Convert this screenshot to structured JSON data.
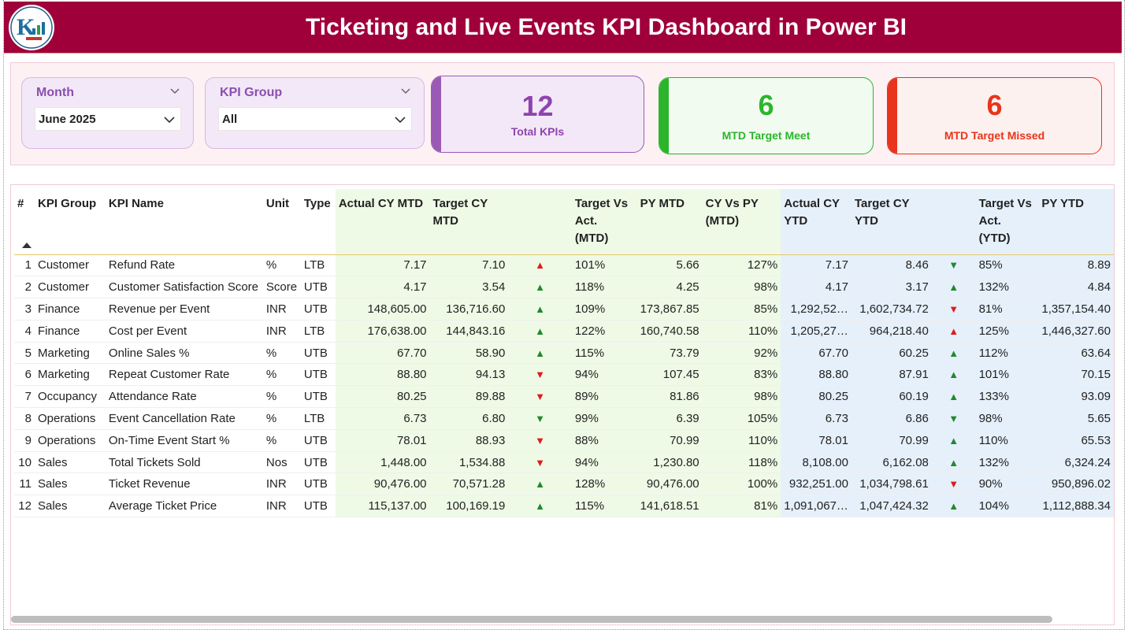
{
  "header": {
    "title": "Ticketing and Live Events KPI Dashboard in Power BI",
    "logo_icon": "company-logo"
  },
  "filters": {
    "month": {
      "label": "Month",
      "value": "June 2025"
    },
    "kpi_group": {
      "label": "KPI Group",
      "value": "All"
    }
  },
  "cards": {
    "total": {
      "value": "12",
      "label": "Total KPIs",
      "color": "#9b59b6"
    },
    "meet": {
      "value": "6",
      "label": "MTD Target Meet",
      "color": "#2cb52c"
    },
    "missed": {
      "value": "6",
      "label": "MTD Target Missed",
      "color": "#e8341c"
    }
  },
  "table": {
    "headers": {
      "num": "#",
      "group": "KPI Group",
      "name": "KPI Name",
      "unit": "Unit",
      "type": "Type",
      "actual_mtd": "Actual CY MTD",
      "target_mtd": "Target CY MTD",
      "tva_mtd": "Target Vs Act. (MTD)",
      "py_mtd": "PY MTD",
      "cy_vs_py": "CY Vs PY (MTD)",
      "actual_ytd": "Actual CY YTD",
      "target_ytd": "Target CY YTD",
      "tva_ytd": "Target Vs Act. (YTD)",
      "py_ytd": "PY YTD"
    },
    "rows": [
      {
        "n": "1",
        "group": "Customer",
        "name": "Refund Rate",
        "unit": "%",
        "type": "LTB",
        "a_mtd": "7.17",
        "t_mtd": "7.10",
        "m_icon": "up-red",
        "tva_mtd": "101%",
        "py_mtd": "5.66",
        "cvp": "127%",
        "a_ytd": "7.17",
        "t_ytd": "8.46",
        "y_icon": "down-green",
        "tva_ytd": "85%",
        "py_ytd": "8.89"
      },
      {
        "n": "2",
        "group": "Customer",
        "name": "Customer Satisfaction Score",
        "unit": "Score",
        "type": "UTB",
        "a_mtd": "4.17",
        "t_mtd": "3.54",
        "m_icon": "up-green",
        "tva_mtd": "118%",
        "py_mtd": "4.25",
        "cvp": "98%",
        "a_ytd": "4.17",
        "t_ytd": "3.17",
        "y_icon": "up-green",
        "tva_ytd": "132%",
        "py_ytd": "4.84"
      },
      {
        "n": "3",
        "group": "Finance",
        "name": "Revenue per Event",
        "unit": "INR",
        "type": "UTB",
        "a_mtd": "148,605.00",
        "t_mtd": "136,716.60",
        "m_icon": "up-green",
        "tva_mtd": "109%",
        "py_mtd": "173,867.85",
        "cvp": "85%",
        "a_ytd": "1,292,52…",
        "t_ytd": "1,602,734.72",
        "y_icon": "down-red",
        "tva_ytd": "81%",
        "py_ytd": "1,357,154.40"
      },
      {
        "n": "4",
        "group": "Finance",
        "name": "Cost per Event",
        "unit": "INR",
        "type": "LTB",
        "a_mtd": "176,638.00",
        "t_mtd": "144,843.16",
        "m_icon": "up-green",
        "tva_mtd": "122%",
        "py_mtd": "160,740.58",
        "cvp": "110%",
        "a_ytd": "1,205,27…",
        "t_ytd": "964,218.40",
        "y_icon": "up-red",
        "tva_ytd": "125%",
        "py_ytd": "1,446,327.60"
      },
      {
        "n": "5",
        "group": "Marketing",
        "name": "Online Sales %",
        "unit": "%",
        "type": "UTB",
        "a_mtd": "67.70",
        "t_mtd": "58.90",
        "m_icon": "up-green",
        "tva_mtd": "115%",
        "py_mtd": "73.79",
        "cvp": "92%",
        "a_ytd": "67.70",
        "t_ytd": "60.25",
        "y_icon": "up-green",
        "tva_ytd": "112%",
        "py_ytd": "63.64"
      },
      {
        "n": "6",
        "group": "Marketing",
        "name": "Repeat Customer Rate",
        "unit": "%",
        "type": "UTB",
        "a_mtd": "88.80",
        "t_mtd": "94.13",
        "m_icon": "down-red",
        "tva_mtd": "94%",
        "py_mtd": "107.45",
        "cvp": "83%",
        "a_ytd": "88.80",
        "t_ytd": "87.91",
        "y_icon": "up-green",
        "tva_ytd": "101%",
        "py_ytd": "70.15"
      },
      {
        "n": "7",
        "group": "Occupancy",
        "name": "Attendance Rate",
        "unit": "%",
        "type": "UTB",
        "a_mtd": "80.25",
        "t_mtd": "89.88",
        "m_icon": "down-red",
        "tva_mtd": "89%",
        "py_mtd": "81.86",
        "cvp": "98%",
        "a_ytd": "80.25",
        "t_ytd": "60.19",
        "y_icon": "up-green",
        "tva_ytd": "133%",
        "py_ytd": "93.09"
      },
      {
        "n": "8",
        "group": "Operations",
        "name": "Event Cancellation Rate",
        "unit": "%",
        "type": "LTB",
        "a_mtd": "6.73",
        "t_mtd": "6.80",
        "m_icon": "down-green",
        "tva_mtd": "99%",
        "py_mtd": "6.39",
        "cvp": "105%",
        "a_ytd": "6.73",
        "t_ytd": "6.86",
        "y_icon": "down-green",
        "tva_ytd": "98%",
        "py_ytd": "5.65"
      },
      {
        "n": "9",
        "group": "Operations",
        "name": "On-Time Event Start %",
        "unit": "%",
        "type": "UTB",
        "a_mtd": "78.01",
        "t_mtd": "88.93",
        "m_icon": "down-red",
        "tva_mtd": "88%",
        "py_mtd": "70.99",
        "cvp": "110%",
        "a_ytd": "78.01",
        "t_ytd": "70.99",
        "y_icon": "up-green",
        "tva_ytd": "110%",
        "py_ytd": "65.53"
      },
      {
        "n": "10",
        "group": "Sales",
        "name": "Total Tickets Sold",
        "unit": "Nos",
        "type": "UTB",
        "a_mtd": "1,448.00",
        "t_mtd": "1,534.88",
        "m_icon": "down-red",
        "tva_mtd": "94%",
        "py_mtd": "1,230.80",
        "cvp": "118%",
        "a_ytd": "8,108.00",
        "t_ytd": "6,162.08",
        "y_icon": "up-green",
        "tva_ytd": "132%",
        "py_ytd": "6,324.24"
      },
      {
        "n": "11",
        "group": "Sales",
        "name": "Ticket Revenue",
        "unit": "INR",
        "type": "UTB",
        "a_mtd": "90,476.00",
        "t_mtd": "70,571.28",
        "m_icon": "up-green",
        "tva_mtd": "128%",
        "py_mtd": "90,476.00",
        "cvp": "100%",
        "a_ytd": "932,251.00",
        "t_ytd": "1,034,798.61",
        "y_icon": "down-red",
        "tva_ytd": "90%",
        "py_ytd": "950,896.02"
      },
      {
        "n": "12",
        "group": "Sales",
        "name": "Average Ticket Price",
        "unit": "INR",
        "type": "UTB",
        "a_mtd": "115,137.00",
        "t_mtd": "100,169.19",
        "m_icon": "up-green",
        "tva_mtd": "115%",
        "py_mtd": "141,618.51",
        "cvp": "81%",
        "a_ytd": "1,091,067…",
        "t_ytd": "1,047,424.32",
        "y_icon": "up-green",
        "tva_ytd": "104%",
        "py_ytd": "1,112,888.34"
      }
    ]
  }
}
